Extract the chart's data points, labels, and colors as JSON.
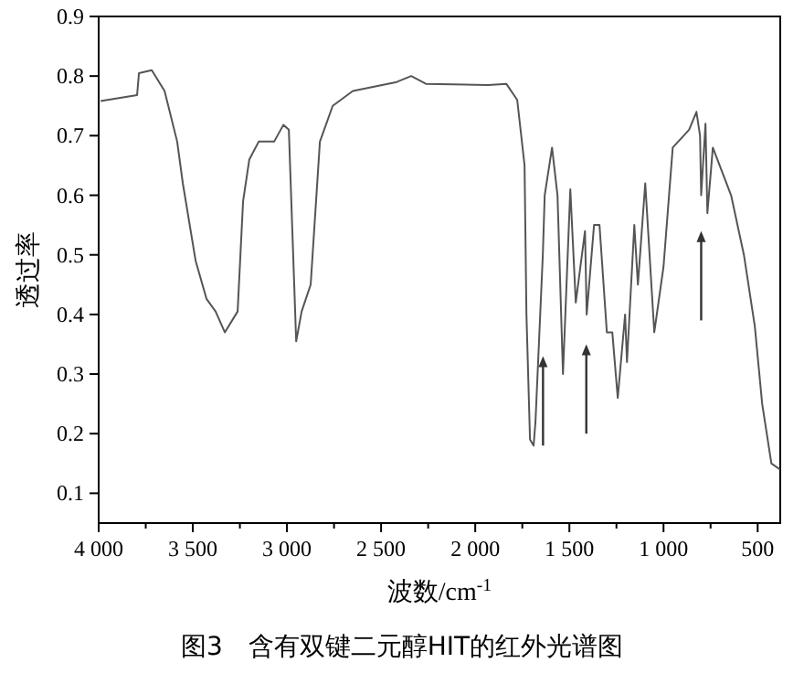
{
  "chart_data": {
    "type": "line",
    "title": "图3　含有双键二元醇HIT的红外光谱图",
    "xlabel": "波数/cm$^{-1}$",
    "ylabel": "透过率",
    "xlim": [
      4000,
      380
    ],
    "ylim": [
      0.05,
      0.9
    ],
    "xticks": [
      {
        "value": 4000,
        "label": "4 000"
      },
      {
        "value": 3750,
        "label": null
      },
      {
        "value": 3500,
        "label": "3 500"
      },
      {
        "value": 3250,
        "label": null
      },
      {
        "value": 3000,
        "label": "3 000"
      },
      {
        "value": 2750,
        "label": null
      },
      {
        "value": 2500,
        "label": "2 500"
      },
      {
        "value": 2250,
        "label": null
      },
      {
        "value": 2000,
        "label": "2 000"
      },
      {
        "value": 1750,
        "label": null
      },
      {
        "value": 1500,
        "label": "1 500"
      },
      {
        "value": 1250,
        "label": null
      },
      {
        "value": 1000,
        "label": "1 000"
      },
      {
        "value": 750,
        "label": null
      },
      {
        "value": 500,
        "label": "500"
      }
    ],
    "yticks": [
      0.1,
      0.2,
      0.3,
      0.4,
      0.5,
      0.6,
      0.7,
      0.8,
      0.9
    ],
    "grid": false,
    "marker": "none",
    "line_style": "solid",
    "series": [
      {
        "color": "#555555",
        "x": [
          3990,
          3796,
          3786,
          3718,
          3650,
          3583,
          3553,
          3485,
          3427,
          3379,
          3330,
          3262,
          3233,
          3200,
          3150,
          3068,
          3019,
          2990,
          2951,
          2922,
          2874,
          2825,
          2757,
          2650,
          2417,
          2340,
          2262,
          1932,
          1835,
          1777,
          1738,
          1728,
          1709,
          1690,
          1680,
          1641,
          1631,
          1592,
          1563,
          1534,
          1495,
          1466,
          1417,
          1408,
          1369,
          1340,
          1301,
          1272,
          1243,
          1204,
          1194,
          1155,
          1136,
          1097,
          1049,
          1000,
          951,
          864,
          825,
          806,
          800,
          777,
          767,
          738,
          641,
          573,
          515,
          476,
          427,
          381
        ],
        "values": [
          0.758,
          0.768,
          0.805,
          0.81,
          0.775,
          0.69,
          0.62,
          0.49,
          0.426,
          0.405,
          0.37,
          0.405,
          0.59,
          0.66,
          0.69,
          0.69,
          0.718,
          0.71,
          0.355,
          0.405,
          0.45,
          0.69,
          0.75,
          0.775,
          0.79,
          0.8,
          0.787,
          0.785,
          0.787,
          0.76,
          0.65,
          0.4,
          0.19,
          0.18,
          0.22,
          0.5,
          0.6,
          0.68,
          0.6,
          0.3,
          0.61,
          0.42,
          0.54,
          0.4,
          0.55,
          0.55,
          0.37,
          0.37,
          0.26,
          0.4,
          0.32,
          0.55,
          0.45,
          0.62,
          0.37,
          0.48,
          0.68,
          0.71,
          0.74,
          0.7,
          0.6,
          0.72,
          0.57,
          0.68,
          0.6,
          0.5,
          0.38,
          0.25,
          0.15,
          0.14
        ]
      }
    ]
  }
}
